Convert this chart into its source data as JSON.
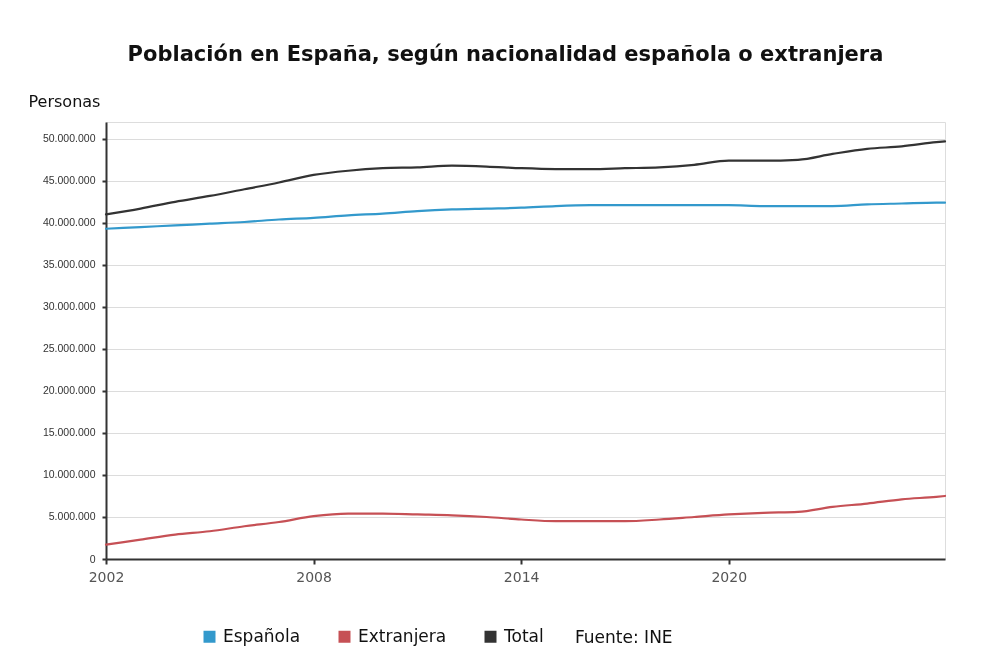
{
  "chart_data": {
    "type": "line",
    "title": "Población en España, según nacionalidad española o extranjera",
    "ylabel": "Personas",
    "x": [
      2002,
      2003,
      2004,
      2005,
      2006,
      2007,
      2008,
      2009,
      2010,
      2011,
      2012,
      2013,
      2014,
      2015,
      2016,
      2017,
      2018,
      2019,
      2020,
      2021,
      2022,
      2023,
      2024,
      2025,
      2026,
      2026.25
    ],
    "series": [
      {
        "name": "Española",
        "color": "#3399cc",
        "values": [
          39300000,
          39500000,
          39700000,
          39900000,
          40100000,
          40400000,
          40600000,
          40900000,
          41100000,
          41400000,
          41600000,
          41700000,
          41800000,
          42000000,
          42100000,
          42100000,
          42100000,
          42100000,
          42100000,
          42000000,
          42000000,
          42000000,
          42200000,
          42300000,
          42400000,
          42400000
        ]
      },
      {
        "name": "Extranjera",
        "color": "#c65055",
        "values": [
          1700000,
          2300000,
          2900000,
          3300000,
          3900000,
          4400000,
          5100000,
          5400000,
          5400000,
          5300000,
          5200000,
          5000000,
          4700000,
          4500000,
          4500000,
          4500000,
          4700000,
          5000000,
          5300000,
          5500000,
          5600000,
          6200000,
          6600000,
          7100000,
          7400000,
          7500000
        ]
      },
      {
        "name": "Total",
        "color": "#333333",
        "values": [
          41000000,
          41700000,
          42500000,
          43200000,
          44000000,
          44800000,
          45700000,
          46200000,
          46500000,
          46600000,
          46800000,
          46700000,
          46500000,
          46400000,
          46400000,
          46500000,
          46600000,
          46900000,
          47400000,
          47400000,
          47500000,
          48200000,
          48800000,
          49100000,
          49600000,
          49700000
        ]
      }
    ],
    "xlim": [
      2002,
      2026.25
    ],
    "xticks": [
      2002,
      2008,
      2014,
      2020
    ],
    "ylim": [
      0,
      52000000
    ],
    "yticks": [
      0,
      {
        "value": 5000000,
        "label": "5.000.000"
      },
      {
        "value": 10000000,
        "label": "10.000.000"
      },
      {
        "value": 15000000,
        "label": "15.000.000"
      },
      {
        "value": 20000000,
        "label": "20.000.000"
      },
      {
        "value": 25000000,
        "label": "25.000.000"
      },
      {
        "value": 30000000,
        "label": "30.000.000"
      },
      {
        "value": 35000000,
        "label": "35.000.000"
      },
      {
        "value": 40000000,
        "label": "40.000.000"
      },
      {
        "value": 45000000,
        "label": "45.000.000"
      },
      {
        "value": 50000000,
        "label": "50.000.000"
      }
    ],
    "grid": "y",
    "legend": "bottom",
    "annotations": [
      "Fuente: INE"
    ]
  }
}
